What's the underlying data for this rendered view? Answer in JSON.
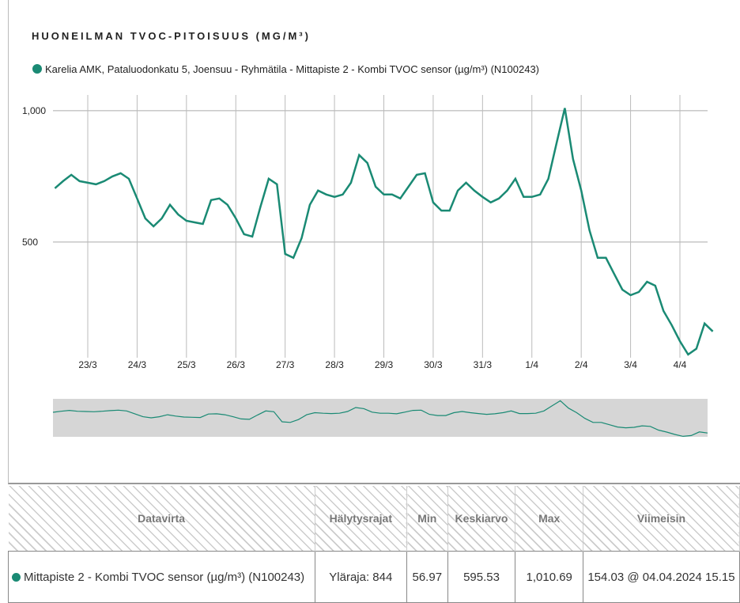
{
  "chart_data": {
    "type": "line",
    "title": "HUONEILMAN TVOC-PITOISUUS (MG/M³)",
    "categories": [
      null,
      null,
      null,
      null,
      "23/3",
      null,
      null,
      null,
      null,
      null,
      "24/3",
      null,
      null,
      null,
      null,
      null,
      "25/3",
      null,
      null,
      null,
      null,
      null,
      "26/3",
      null,
      null,
      null,
      null,
      null,
      "27/3",
      null,
      null,
      null,
      null,
      null,
      "28/3",
      null,
      null,
      null,
      null,
      null,
      "29/3",
      null,
      null,
      null,
      null,
      null,
      "30/3",
      null,
      null,
      null,
      null,
      null,
      "31/3",
      null,
      null,
      null,
      null,
      null,
      "1/4",
      null,
      null,
      null,
      null,
      null,
      "2/4",
      null,
      null,
      null,
      null,
      null,
      "3/4",
      null,
      null,
      null,
      null,
      null,
      "4/4",
      null,
      null,
      null,
      null
    ],
    "series": [
      {
        "name": "Karelia AMK, Pataluodonkatu 5, Joensuu - Ryhmätila - Mittapiste 2 - Kombi TVOC sensor (µg/m³) (N100243)",
        "color": "#1a8a74",
        "values": [
          705,
          732,
          756,
          732,
          726,
          720,
          732,
          750,
          762,
          741,
          666,
          590,
          560,
          590,
          642,
          605,
          581,
          575,
          569,
          660,
          666,
          642,
          590,
          530,
          521,
          635,
          741,
          720,
          455,
          440,
          515,
          642,
          696,
          681,
          672,
          681,
          726,
          831,
          801,
          711,
          681,
          681,
          666,
          711,
          756,
          762,
          651,
          620,
          620,
          696,
          726,
          696,
          672,
          651,
          666,
          696,
          741,
          672,
          672,
          681,
          741,
          877,
          1010,
          816,
          696,
          545,
          440,
          440,
          379,
          319,
          298,
          310,
          349,
          334,
          238,
          184,
          123,
          72,
          94,
          190,
          160
        ]
      }
    ],
    "ylim": [
      60,
      1060
    ],
    "yticks": [
      {
        "value": 1000,
        "label": "1,000"
      },
      500
    ],
    "grid": true
  },
  "table": {
    "headers": [
      "Datavirta",
      "Hälytysrajat",
      "Min",
      "Keskiarvo",
      "Max",
      "Viimeisin"
    ],
    "rows": [
      [
        "Mittapiste 2 - Kombi TVOC sensor (µg/m³) (N100243)",
        "Yläraja: 844",
        "56.97",
        "595.53",
        "1,010.69",
        "154.03 @ 04.04.2024 15.15"
      ]
    ]
  }
}
